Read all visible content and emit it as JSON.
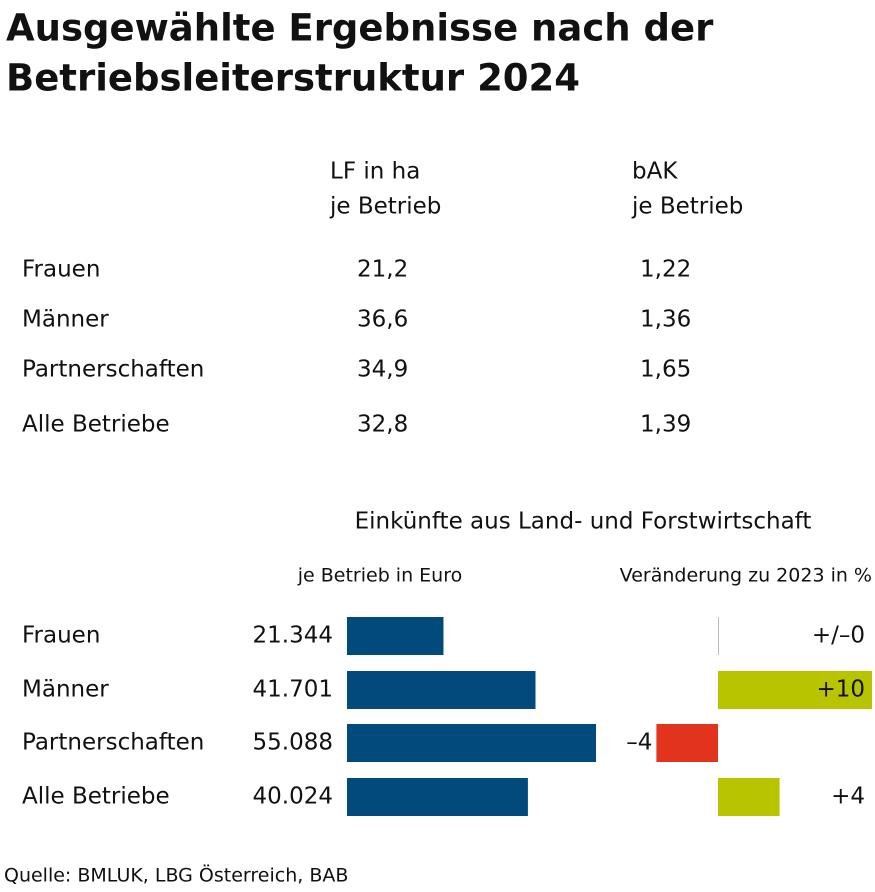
{
  "title": [
    "Ausgewählte Ergebnisse nach der",
    "Betriebsleiterstruktur 2024"
  ],
  "table": {
    "columns": [
      [
        "LF in ha",
        "je Betrieb"
      ],
      [
        "bAK",
        "je Betrieb"
      ]
    ],
    "rows": [
      [
        "Frauen",
        "21,2",
        "1,22"
      ],
      [
        "Männer",
        "36,6",
        "1,36"
      ],
      [
        "Partnerschaften",
        "34,9",
        "1,65"
      ],
      [
        "Alle Betriebe",
        "32,8",
        "1,39"
      ]
    ]
  },
  "income_heading": "Einkünfte aus Land- und Forstwirtschaft",
  "chart_data": [
    {
      "type": "hbar",
      "subtitle": "je Betrieb in Euro",
      "categories": [
        "Frauen",
        "Männer",
        "Partnerschaften",
        "Alle Betriebe"
      ],
      "values": [
        21344,
        41701,
        55088,
        40024
      ],
      "value_labels": [
        "21.344",
        "41.701",
        "55.088",
        "40.024"
      ],
      "color": "#004b7c"
    },
    {
      "type": "hbar",
      "subtitle": "Veränderung zu 2023 in %",
      "values": [
        0,
        10,
        -4,
        4
      ],
      "value_labels": [
        "+/–0",
        "+10",
        "–4",
        "+4"
      ],
      "color": "#b8c400",
      "negative_color": "#e2341d"
    }
  ],
  "source": "Quelle: BMLUK, LBG Österreich, BAB"
}
